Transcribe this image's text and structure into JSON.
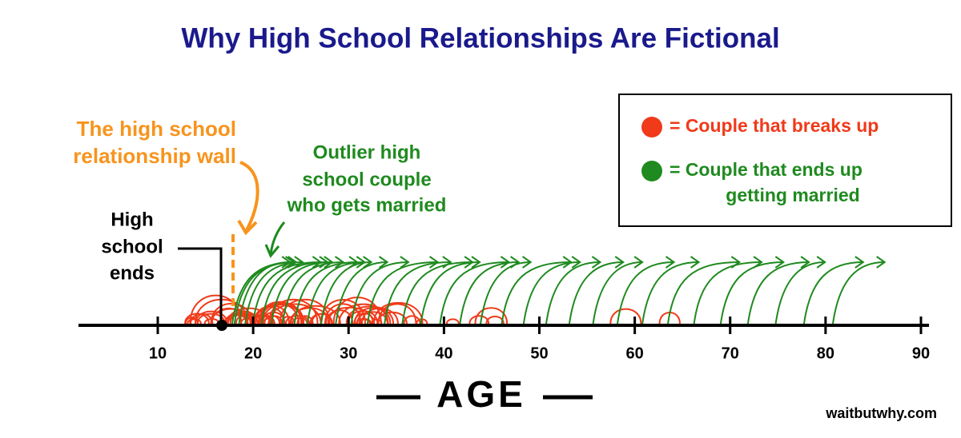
{
  "title": "Why High School Relationships Are Fictional",
  "annotations": {
    "wall": [
      "The high school",
      "relationship wall"
    ],
    "outlier": [
      "Outlier high",
      "school couple",
      "who gets married"
    ],
    "school_ends": [
      "High",
      "school",
      "ends"
    ]
  },
  "legend": {
    "breaks_up": [
      "= Couple that breaks up"
    ],
    "married": [
      "= Couple that ends up",
      "getting married"
    ]
  },
  "axis": {
    "label": "AGE",
    "ticks": [
      10,
      20,
      30,
      40,
      50,
      60,
      70,
      80,
      90
    ]
  },
  "credit": "waitbutwhy.com"
}
